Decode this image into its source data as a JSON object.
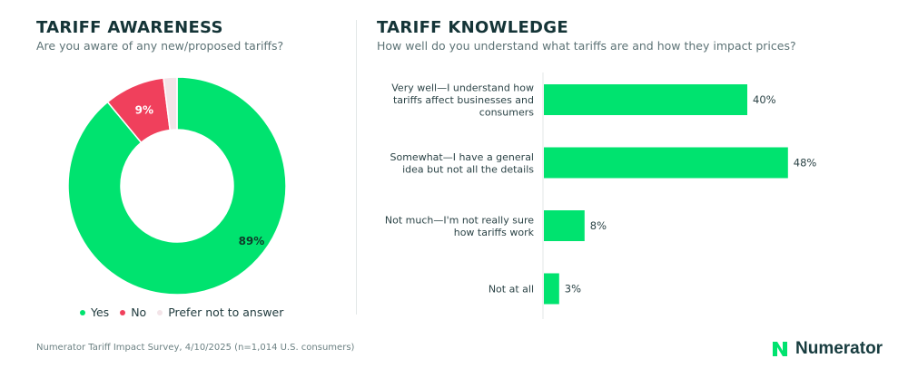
{
  "left": {
    "title": "TARIFF AWARENESS",
    "subtitle": "Are you aware of any new/proposed tariffs?"
  },
  "right": {
    "title": "TARIFF KNOWLEDGE",
    "subtitle": "How well do you understand what tariffs are and how they impact prices?"
  },
  "legend": {
    "items": [
      {
        "label": "Yes",
        "color": "#00e36f"
      },
      {
        "label": "No",
        "color": "#f0405c"
      },
      {
        "label": "Prefer not to answer",
        "color": "#f3e4e8"
      }
    ]
  },
  "footer": {
    "note": "Numerator Tariff Impact Survey, 4/10/2025 (n=1,014 U.S. consumers)",
    "brand": "Numerator"
  },
  "chart_data": [
    {
      "type": "pie",
      "title": "TARIFF AWARENESS",
      "subtitle": "Are you aware of any new/proposed tariffs?",
      "donut": true,
      "labels": [
        "Yes",
        "No",
        "Prefer not to answer"
      ],
      "values": [
        89,
        9,
        2
      ],
      "data_labels": [
        "89%",
        "9%",
        ""
      ],
      "colors": [
        "#00e36f",
        "#f0405c",
        "#f3e4e8"
      ],
      "legend": "bottom"
    },
    {
      "type": "bar",
      "orientation": "horizontal",
      "title": "TARIFF KNOWLEDGE",
      "subtitle": "How well do you understand what tariffs are and how they impact prices?",
      "categories": [
        [
          "Very well—I understand how",
          "tariffs affect businesses and",
          "consumers"
        ],
        [
          "Somewhat—I have a general",
          "idea but not all the details"
        ],
        [
          "Not much—I'm not really sure",
          "how tariffs work"
        ],
        [
          "Not at all"
        ]
      ],
      "values": [
        40,
        48,
        8,
        3
      ],
      "data_labels": [
        "40%",
        "48%",
        "8%",
        "3%"
      ],
      "color": "#00e36f",
      "xlim": [
        0,
        50
      ]
    }
  ]
}
